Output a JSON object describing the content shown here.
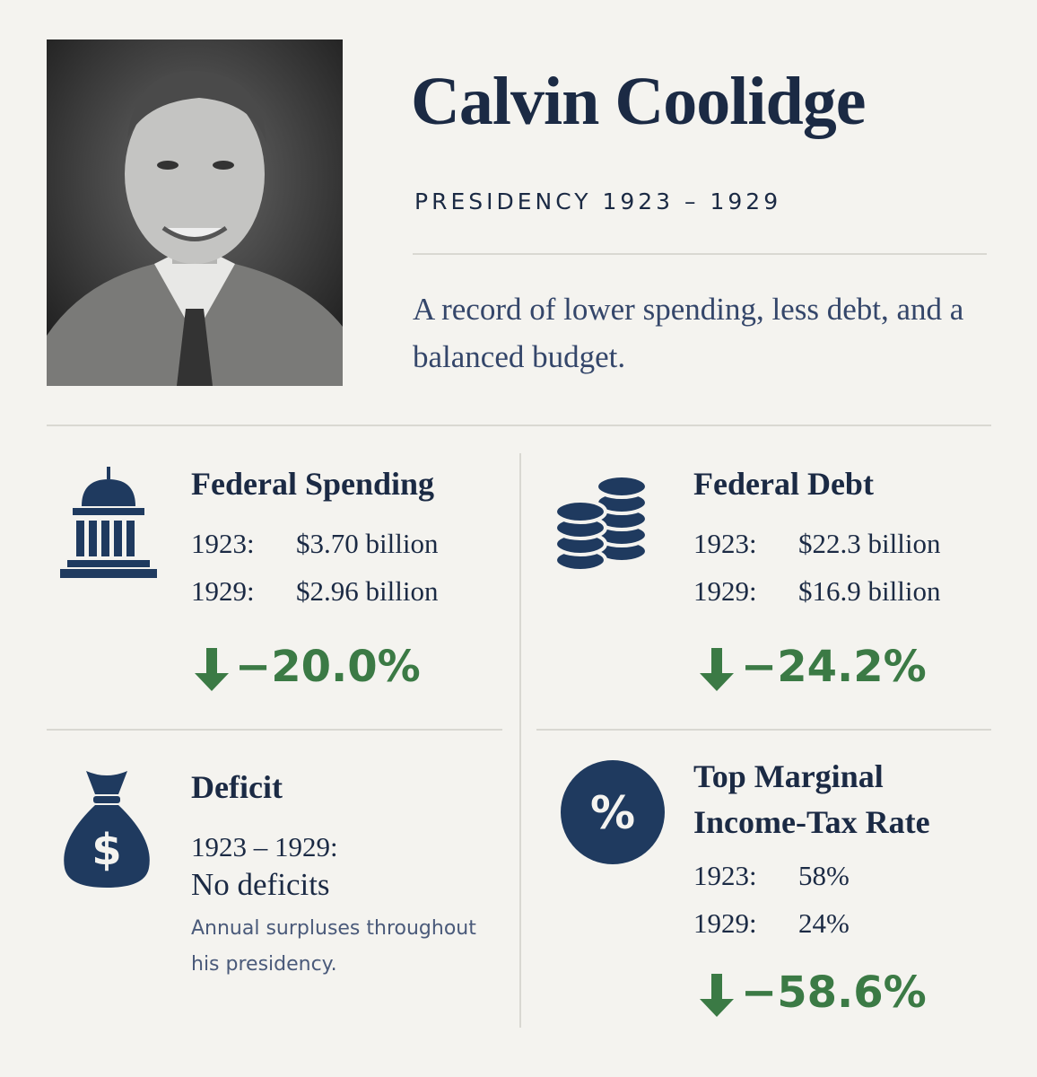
{
  "header": {
    "name": "Calvin Coolidge",
    "subtitle": "PRESIDENCY 1923 – 1929",
    "tagline": "A record of lower spending, less debt, and a balanced budget."
  },
  "cards": [
    {
      "title": "Federal Spending",
      "rows": [
        [
          "1923:",
          "$3.70 billion"
        ],
        [
          "1929:",
          "$2.96 billion"
        ]
      ],
      "change": "−20.0%"
    },
    {
      "title": "Federal Debt",
      "rows": [
        [
          "1923:",
          "$22.3 billion"
        ],
        [
          "1929:",
          "$16.9 billion"
        ]
      ],
      "change": "−24.2%"
    },
    {
      "title": "Deficit",
      "period": "1923 – 1929:",
      "result": "No deficits",
      "note": "Annual surpluses throughout his presidency."
    },
    {
      "title": "Top Marginal Income-Tax Rate",
      "rows": [
        [
          "1923:",
          "58%"
        ],
        [
          "1929:",
          "24%"
        ]
      ],
      "change": "−58.6%"
    }
  ]
}
